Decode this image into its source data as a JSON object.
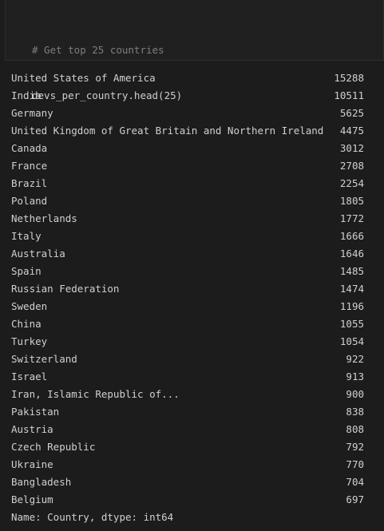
{
  "input_cell": {
    "comment": "# Get top 25 countries",
    "code": "devs_per_country.head(25)"
  },
  "output": {
    "rows": [
      {
        "country": "United States of America",
        "count": "15288"
      },
      {
        "country": "India",
        "count": "10511"
      },
      {
        "country": "Germany",
        "count": "5625"
      },
      {
        "country": "United Kingdom of Great Britain and Northern Ireland",
        "count": "4475"
      },
      {
        "country": "Canada",
        "count": "3012"
      },
      {
        "country": "France",
        "count": "2708"
      },
      {
        "country": "Brazil",
        "count": "2254"
      },
      {
        "country": "Poland",
        "count": "1805"
      },
      {
        "country": "Netherlands",
        "count": "1772"
      },
      {
        "country": "Italy",
        "count": "1666"
      },
      {
        "country": "Australia",
        "count": "1646"
      },
      {
        "country": "Spain",
        "count": "1485"
      },
      {
        "country": "Russian Federation",
        "count": "1474"
      },
      {
        "country": "Sweden",
        "count": "1196"
      },
      {
        "country": "China",
        "count": "1055"
      },
      {
        "country": "Turkey",
        "count": "1054"
      },
      {
        "country": "Switzerland",
        "count": "922"
      },
      {
        "country": "Israel",
        "count": "913"
      },
      {
        "country": "Iran, Islamic Republic of...",
        "count": "900"
      },
      {
        "country": "Pakistan",
        "count": "838"
      },
      {
        "country": "Austria",
        "count": "808"
      },
      {
        "country": "Czech Republic",
        "count": "792"
      },
      {
        "country": "Ukraine",
        "count": "770"
      },
      {
        "country": "Bangladesh",
        "count": "704"
      },
      {
        "country": "Belgium",
        "count": "697"
      }
    ],
    "footer": "Name: Country, dtype: int64"
  }
}
